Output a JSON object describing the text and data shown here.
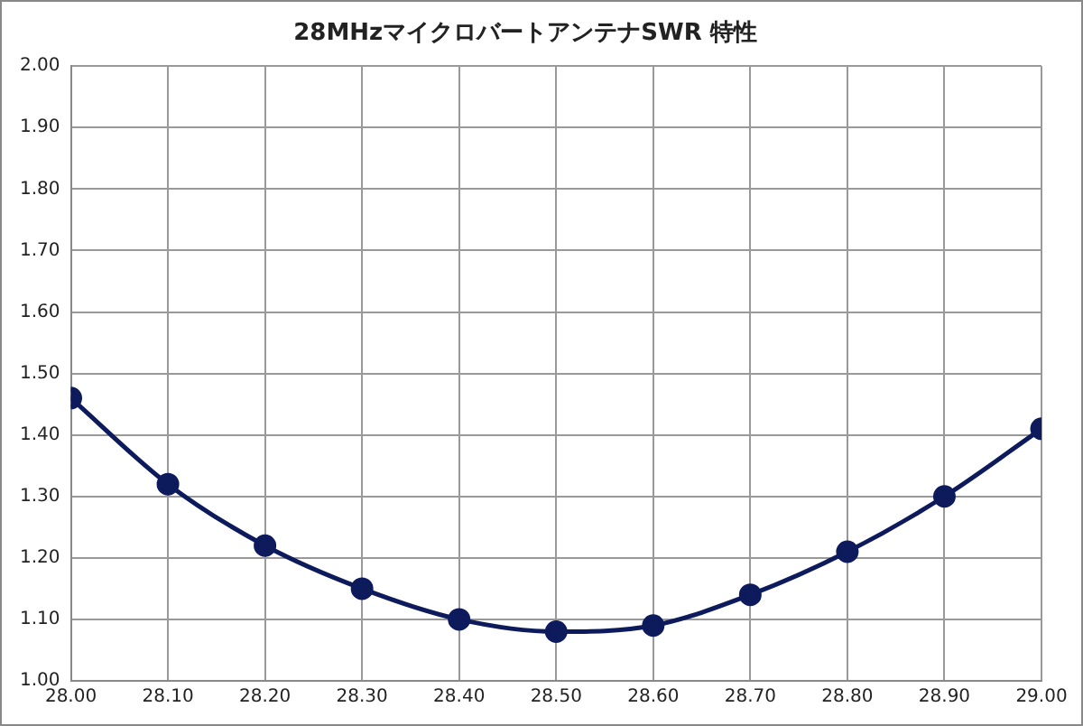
{
  "chart_data": {
    "type": "line",
    "title": "28MHzマイクロバートアンテナSWR 特性",
    "x": [
      28.0,
      28.1,
      28.2,
      28.3,
      28.4,
      28.5,
      28.6,
      28.7,
      28.8,
      28.9,
      29.0
    ],
    "series": [
      {
        "color": "#0d1a5c",
        "values": [
          1.46,
          1.32,
          1.22,
          1.15,
          1.1,
          1.08,
          1.09,
          1.14,
          1.21,
          1.3,
          1.41
        ]
      }
    ],
    "xlim": [
      28.0,
      29.0
    ],
    "xticks": [
      {
        "value": 28.0,
        "label": "28.00"
      },
      {
        "value": 28.1,
        "label": "28.10"
      },
      {
        "value": 28.2,
        "label": "28.20"
      },
      {
        "value": 28.3,
        "label": "28.30"
      },
      {
        "value": 28.4,
        "label": "28.40"
      },
      {
        "value": 28.5,
        "label": "28.50"
      },
      {
        "value": 28.6,
        "label": "28.60"
      },
      {
        "value": 28.7,
        "label": "28.70"
      },
      {
        "value": 28.8,
        "label": "28.80"
      },
      {
        "value": 28.9,
        "label": "28.90"
      },
      {
        "value": 29.0,
        "label": "29.00"
      }
    ],
    "ylim": [
      1.0,
      2.0
    ],
    "yticks": [
      {
        "value": 1.0,
        "label": "1.00"
      },
      {
        "value": 1.1,
        "label": "1.10"
      },
      {
        "value": 1.2,
        "label": "1.20"
      },
      {
        "value": 1.3,
        "label": "1.30"
      },
      {
        "value": 1.4,
        "label": "1.40"
      },
      {
        "value": 1.5,
        "label": "1.50"
      },
      {
        "value": 1.6,
        "label": "1.60"
      },
      {
        "value": 1.7,
        "label": "1.70"
      },
      {
        "value": 1.8,
        "label": "1.80"
      },
      {
        "value": 1.9,
        "label": "1.90"
      },
      {
        "value": 2.0,
        "label": "2.00"
      }
    ],
    "grid": true,
    "legend": false,
    "marker": "circle",
    "line_style": "solid"
  }
}
